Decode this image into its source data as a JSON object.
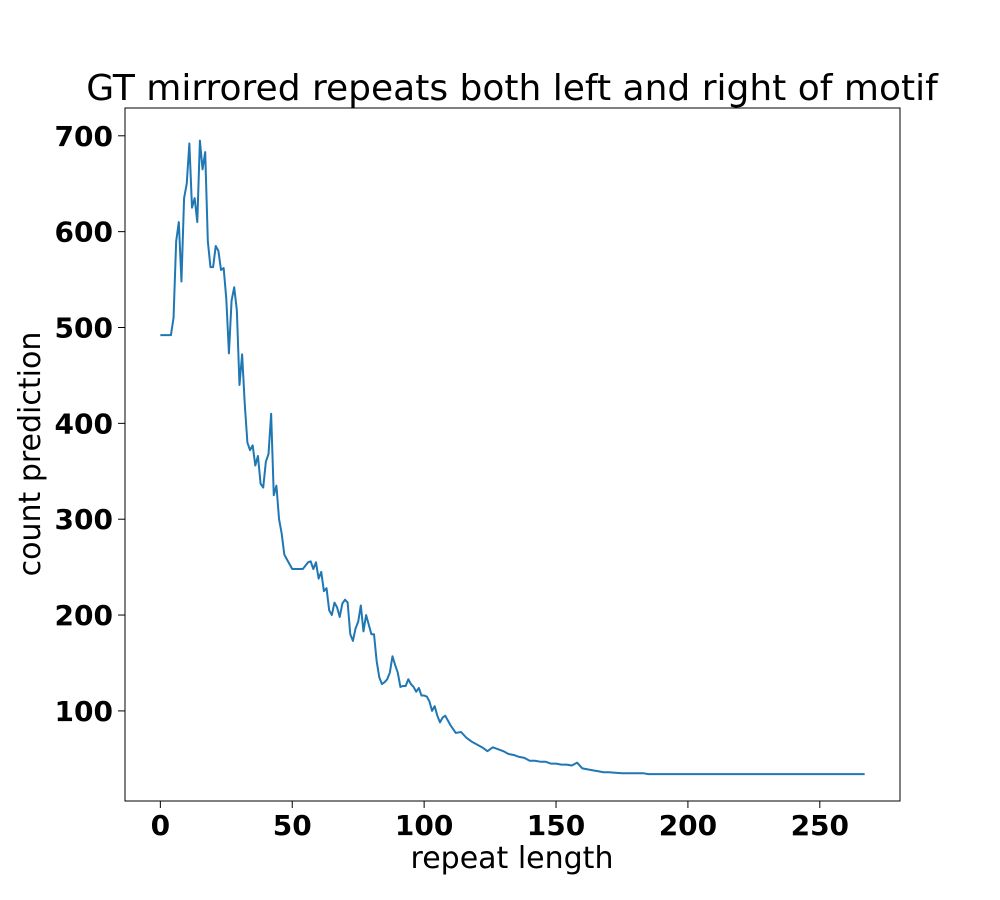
{
  "chart_data": {
    "type": "line",
    "title": "GT mirrored repeats both left and right of motif",
    "xlabel": "repeat length",
    "ylabel": "count prediction",
    "xlim": [
      -13.4,
      280.4
    ],
    "ylim": [
      6,
      729
    ],
    "xticks": [
      0,
      50,
      100,
      150,
      200,
      250
    ],
    "yticks": [
      100,
      200,
      300,
      400,
      500,
      600,
      700
    ],
    "grid": false,
    "color": "#1f77b4",
    "series": [
      {
        "name": "count prediction",
        "x": [
          0,
          2,
          4,
          5,
          6,
          7,
          8,
          9,
          10,
          11,
          12,
          13,
          14,
          15,
          16,
          17,
          18,
          19,
          20,
          21,
          22,
          23,
          24,
          25,
          26,
          27,
          28,
          29,
          30,
          31,
          32,
          33,
          34,
          35,
          36,
          37,
          38,
          39,
          40,
          41,
          42,
          43,
          44,
          45,
          46,
          47,
          48,
          49,
          50,
          52,
          54,
          56,
          57,
          58,
          59,
          60,
          61,
          62,
          63,
          64,
          65,
          66,
          67,
          68,
          69,
          70,
          71,
          72,
          73,
          74,
          75,
          76,
          77,
          78,
          79,
          80,
          81,
          82,
          83,
          84,
          85,
          86,
          87,
          88,
          89,
          90,
          91,
          92,
          93,
          94,
          95,
          96,
          97,
          98,
          99,
          100,
          101,
          102,
          103,
          104,
          105,
          106,
          107,
          108,
          110,
          112,
          114,
          116,
          118,
          120,
          122,
          124,
          126,
          128,
          130,
          132,
          134,
          136,
          138,
          140,
          142,
          144,
          146,
          148,
          150,
          152,
          154,
          156,
          158,
          160,
          162,
          164,
          166,
          168,
          170,
          175,
          180,
          183,
          185,
          190,
          200,
          220,
          240,
          267
        ],
        "y": [
          492,
          492,
          492,
          510,
          590,
          610,
          548,
          635,
          650,
          692,
          625,
          635,
          610,
          695,
          665,
          683,
          590,
          563,
          563,
          585,
          580,
          560,
          562,
          530,
          473,
          528,
          542,
          518,
          440,
          472,
          420,
          380,
          372,
          377,
          356,
          366,
          337,
          333,
          360,
          368,
          410,
          325,
          335,
          300,
          285,
          263,
          258,
          253,
          248,
          248,
          248,
          255,
          256,
          248,
          255,
          238,
          245,
          225,
          228,
          205,
          200,
          213,
          208,
          198,
          212,
          216,
          213,
          180,
          173,
          186,
          193,
          210,
          183,
          200,
          190,
          180,
          180,
          152,
          135,
          128,
          130,
          133,
          140,
          157,
          148,
          140,
          125,
          126,
          126,
          133,
          128,
          125,
          120,
          124,
          116,
          116,
          115,
          110,
          100,
          105,
          95,
          88,
          93,
          95,
          85,
          77,
          78,
          72,
          68,
          65,
          62,
          58,
          62,
          60,
          58,
          55,
          54,
          52,
          51,
          48,
          48,
          47,
          47,
          45,
          45,
          44,
          44,
          43,
          46,
          40,
          39,
          38,
          37,
          36,
          36,
          35,
          35,
          35,
          34,
          34,
          34,
          34,
          34,
          34
        ]
      }
    ]
  }
}
